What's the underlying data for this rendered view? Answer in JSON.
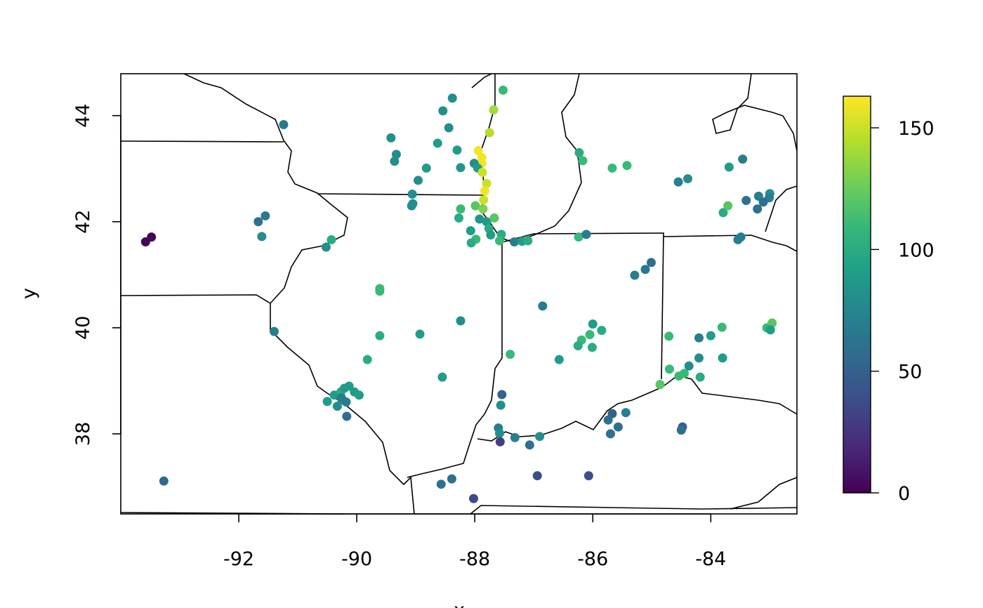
{
  "chart_data": {
    "type": "scatter",
    "xlabel": "x",
    "ylabel": "y",
    "xlim": [
      -94.0,
      -82.54
    ],
    "ylim": [
      36.49,
      44.79
    ],
    "xticks": [
      -92,
      -90,
      -88,
      -86,
      -84
    ],
    "yticks": [
      38,
      40,
      42,
      44
    ],
    "zlim": [
      0,
      163
    ],
    "zticks": [
      0,
      50,
      100,
      150
    ],
    "colormap": [
      "#440154",
      "#482878",
      "#3e4a89",
      "#31688e",
      "#26828e",
      "#1f9e89",
      "#35b779",
      "#6ece58",
      "#b5de2b",
      "#fde725"
    ],
    "x": [
      -93.58,
      -93.48,
      -93.27,
      -91.24,
      -91.67,
      -91.55,
      -91.61,
      -91.4,
      -90.43,
      -90.52,
      -89.42,
      -89.33,
      -89.36,
      -88.82,
      -88.96,
      -89.06,
      -89.05,
      -89.07,
      -88.38,
      -88.54,
      -88.44,
      -88.63,
      -88.3,
      -88.24,
      -87.52,
      -87.68,
      -87.75,
      -87.94,
      -87.88,
      -87.88,
      -88.01,
      -87.95,
      -87.87,
      -87.8,
      -87.83,
      -87.85,
      -87.99,
      -88.24,
      -87.86,
      -88.27,
      -87.92,
      -87.8,
      -87.67,
      -88.07,
      -87.76,
      -87.73,
      -87.55,
      -87.98,
      -88.06,
      -87.58,
      -87.33,
      -87.2,
      -87.1,
      -86.23,
      -86.17,
      -85.67,
      -85.42,
      -86.24,
      -86.11,
      -85.29,
      -85.11,
      -85.01,
      -86.85,
      -89.61,
      -89.61,
      -89.61,
      -88.93,
      -88.24,
      -89.82,
      -88.55,
      -87.4,
      -86.57,
      -86.0,
      -85.85,
      -86.05,
      -86.19,
      -86.25,
      -86.01,
      -84.71,
      -84.7,
      -84.86,
      -84.54,
      -84.45,
      -84.37,
      -84.2,
      -84.2,
      -84.0,
      -83.81,
      -84.18,
      -83.8,
      -83.05,
      -82.96,
      -82.99,
      -84.55,
      -84.39,
      -83.79,
      -83.71,
      -83.69,
      -83.46,
      -83.4,
      -83.19,
      -83.0,
      -83.01,
      -83.11,
      -83.21,
      -83.49,
      -83.54,
      -90.5,
      -90.38,
      -90.27,
      -90.21,
      -90.13,
      -90.04,
      -89.96,
      -90.33,
      -90.25,
      -90.18,
      -90.26,
      -90.17,
      -87.54,
      -87.56,
      -87.6,
      -87.58,
      -87.57,
      -87.32,
      -86.9,
      -87.07,
      -88.57,
      -88.39,
      -88.02,
      -86.94,
      -86.07,
      -85.67,
      -85.74,
      -85.57,
      -85.7,
      -85.44,
      -84.48,
      -84.5
    ],
    "y": [
      41.62,
      41.71,
      37.11,
      43.83,
      42.0,
      42.11,
      41.72,
      39.93,
      41.66,
      41.52,
      43.58,
      43.27,
      43.14,
      43.01,
      42.78,
      42.52,
      42.34,
      42.3,
      44.33,
      44.09,
      43.77,
      43.48,
      43.35,
      43.02,
      44.48,
      44.11,
      43.68,
      43.34,
      43.21,
      43.1,
      43.1,
      43.01,
      42.93,
      42.72,
      42.58,
      42.41,
      42.3,
      42.24,
      42.24,
      42.07,
      42.05,
      42.0,
      42.07,
      41.83,
      41.87,
      41.75,
      41.76,
      41.67,
      41.6,
      41.64,
      41.62,
      41.63,
      41.64,
      43.3,
      43.15,
      43.01,
      43.06,
      41.71,
      41.76,
      40.99,
      41.1,
      41.23,
      40.41,
      40.74,
      40.69,
      39.85,
      39.88,
      40.13,
      39.4,
      39.07,
      39.5,
      39.4,
      40.07,
      39.95,
      39.87,
      39.77,
      39.66,
      39.63,
      39.84,
      39.22,
      38.93,
      39.09,
      39.14,
      39.28,
      39.43,
      39.81,
      39.85,
      40.01,
      39.07,
      39.43,
      40.0,
      40.09,
      39.96,
      42.75,
      42.81,
      42.17,
      42.3,
      43.03,
      43.18,
      42.4,
      42.48,
      42.53,
      42.45,
      42.37,
      42.24,
      41.71,
      41.66,
      38.61,
      38.73,
      38.79,
      38.86,
      38.9,
      38.79,
      38.73,
      38.52,
      38.64,
      38.6,
      38.68,
      38.33,
      38.74,
      38.54,
      38.11,
      38.01,
      37.85,
      37.93,
      37.95,
      37.79,
      37.05,
      37.15,
      36.78,
      37.21,
      37.21,
      38.38,
      38.26,
      38.13,
      38.0,
      38.4,
      38.13,
      38.07
    ],
    "values": [
      2,
      2,
      55,
      65,
      60,
      65,
      80,
      70,
      100,
      80,
      80,
      80,
      80,
      90,
      80,
      80,
      80,
      80,
      80,
      80,
      80,
      90,
      90,
      85,
      110,
      140,
      145,
      160,
      160,
      160,
      80,
      90,
      150,
      150,
      160,
      150,
      120,
      110,
      130,
      100,
      85,
      90,
      120,
      90,
      100,
      90,
      100,
      110,
      100,
      110,
      70,
      90,
      100,
      100,
      110,
      110,
      110,
      110,
      70,
      70,
      65,
      60,
      70,
      110,
      110,
      100,
      90,
      80,
      100,
      90,
      110,
      90,
      90,
      100,
      110,
      110,
      100,
      100,
      110,
      110,
      120,
      110,
      110,
      80,
      80,
      70,
      90,
      110,
      100,
      90,
      110,
      120,
      90,
      70,
      80,
      100,
      120,
      90,
      70,
      60,
      70,
      80,
      70,
      60,
      60,
      70,
      70,
      90,
      90,
      100,
      90,
      90,
      90,
      90,
      80,
      80,
      70,
      70,
      60,
      50,
      80,
      70,
      80,
      30,
      70,
      80,
      60,
      60,
      60,
      35,
      40,
      40,
      50,
      60,
      60,
      60,
      70,
      50,
      60
    ]
  }
}
